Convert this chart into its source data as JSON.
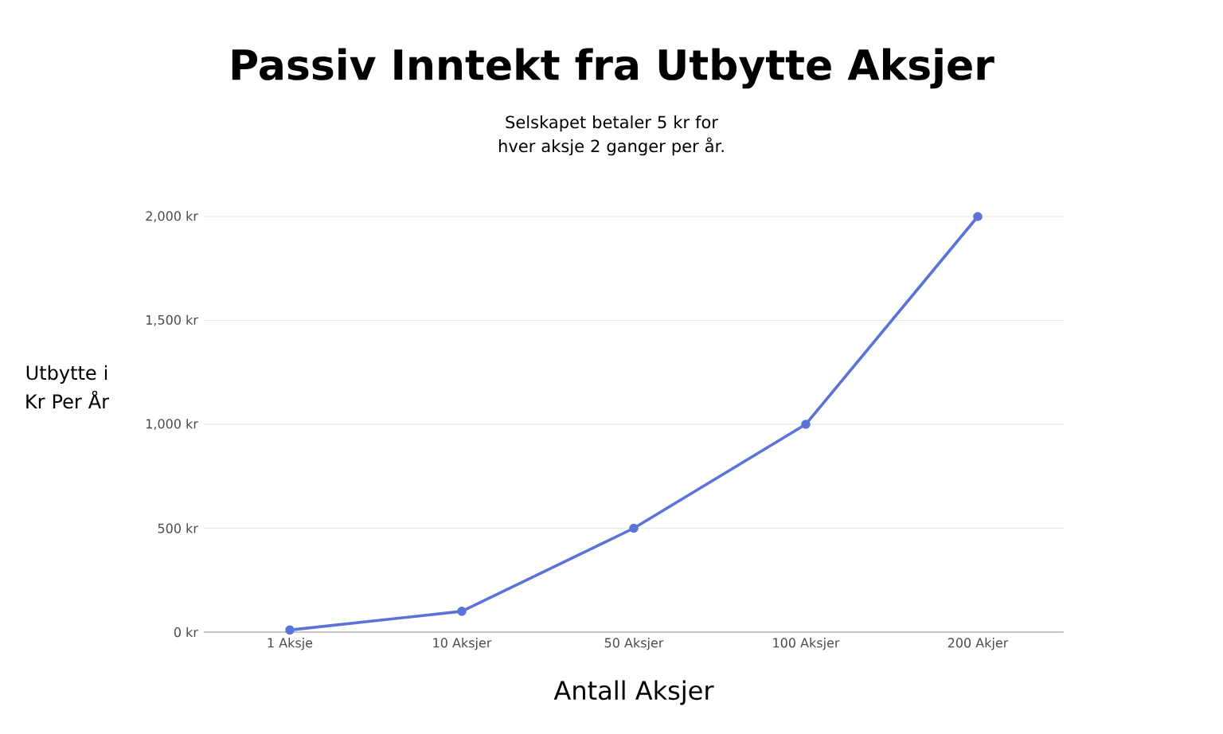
{
  "chart_data": {
    "type": "line",
    "title": "Passiv Inntekt fra Utbytte Aksjer",
    "subtitle": "Selskapet betaler 5 kr for hver aksje 2 ganger per år.",
    "xlabel": "Antall Aksjer",
    "ylabel": "Utbytte i Kr Per År",
    "categories": [
      "1 Aksje",
      "10 Aksjer",
      "50 Aksjer",
      "100 Aksjer",
      "200 Akjer"
    ],
    "values": [
      10,
      100,
      500,
      1000,
      2000
    ],
    "color": "#5b73d8",
    "ylim": [
      0,
      2000
    ],
    "yticks": [
      {
        "value": 0,
        "label": "0 kr"
      },
      {
        "value": 500,
        "label": "500 kr"
      },
      {
        "value": 1000,
        "label": "1,000 kr"
      },
      {
        "value": 1500,
        "label": "1,500 kr"
      },
      {
        "value": 2000,
        "label": "2,000 kr"
      }
    ],
    "grid": "y",
    "marker": "circle",
    "line_style": "solid"
  }
}
